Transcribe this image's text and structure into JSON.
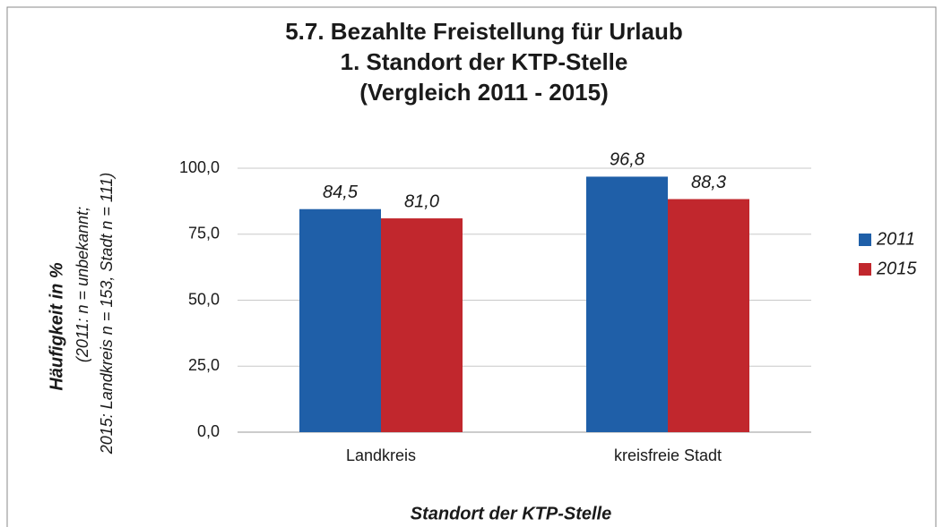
{
  "chart_data": {
    "type": "bar",
    "title": [
      "5.7. Bezahlte Freistellung für Urlaub",
      "1. Standort der KTP-Stelle",
      "(Vergleich 2011 - 2015)"
    ],
    "y_label": "Häufigkeit in %",
    "y_label_note": [
      "(2011: n = unbekannt;",
      "2015: Landkreis n = 153, Stadt n = 111)"
    ],
    "x_label": "Standort der KTP-Stelle",
    "categories": [
      "Landkreis",
      "kreisfreie Stadt"
    ],
    "series": [
      {
        "name": "2011",
        "color": "#1f5fa8",
        "values": [
          84.5,
          96.8
        ],
        "value_labels": [
          "84,5",
          "96,8"
        ]
      },
      {
        "name": "2015",
        "color": "#c1272d",
        "values": [
          81.0,
          88.3
        ],
        "value_labels": [
          "81,0",
          "88,3"
        ]
      }
    ],
    "ylim": [
      0,
      100
    ],
    "yticks": [
      {
        "value": 0,
        "label": "0,0"
      },
      {
        "value": 25,
        "label": "25,0"
      },
      {
        "value": 50,
        "label": "50,0"
      },
      {
        "value": 75,
        "label": "75,0"
      },
      {
        "value": 100,
        "label": "100,0"
      }
    ],
    "grid": true,
    "legend": "right"
  }
}
